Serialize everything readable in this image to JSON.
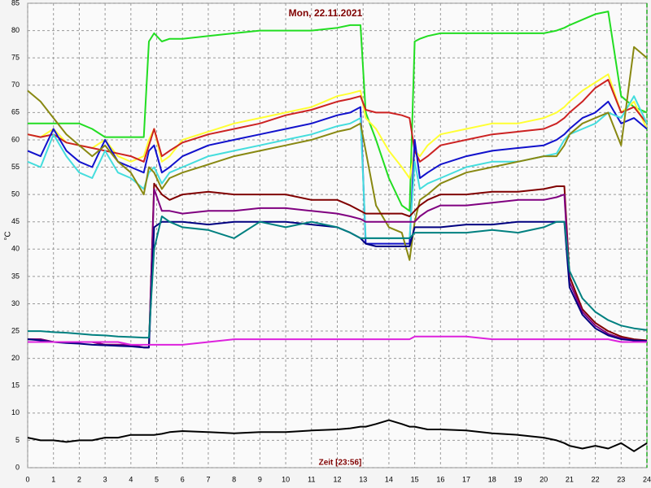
{
  "chart_data": {
    "type": "line",
    "title": "Mon, 22.11.2021",
    "ylabel": "°C",
    "xlabel": "Zeit [23:56]",
    "x": [
      0,
      0.5,
      1,
      1.5,
      2,
      2.5,
      3,
      3.5,
      4,
      4.5,
      4.7,
      4.9,
      5.2,
      5.5,
      6,
      7,
      8,
      9,
      10,
      11,
      12,
      12.5,
      12.9,
      13.1,
      13.5,
      14,
      14.5,
      14.8,
      15,
      15.2,
      15.5,
      16,
      17,
      18,
      19,
      20,
      20.5,
      20.8,
      21,
      21.5,
      22,
      22.5,
      23,
      23.5,
      24
    ],
    "series": [
      {
        "color": "#22dd22",
        "values": [
          63,
          63,
          63,
          63,
          63,
          62,
          60.5,
          60.5,
          60.5,
          60.5,
          78,
          79.5,
          78,
          78.5,
          78.5,
          79,
          79.5,
          80,
          80,
          80,
          80.5,
          81,
          81,
          65,
          60,
          53,
          48,
          47,
          78,
          78.5,
          79,
          79.5,
          79.5,
          79.5,
          79.5,
          79.5,
          80,
          80.5,
          81,
          82,
          83,
          83.5,
          68,
          66,
          65
        ]
      },
      {
        "color": "#ffff33",
        "values": [
          61,
          60.5,
          62,
          59.5,
          59,
          58.5,
          60,
          57,
          56,
          57,
          60,
          62,
          56,
          57,
          60,
          61.5,
          63,
          64,
          65,
          66,
          68,
          68.5,
          69,
          64,
          62,
          58,
          55,
          53,
          58,
          57,
          59,
          61,
          62,
          63,
          63,
          64,
          65,
          66,
          67,
          69,
          70.5,
          72,
          65,
          67,
          62
        ]
      },
      {
        "color": "#cc2222",
        "values": [
          61,
          60.5,
          61,
          59.5,
          59,
          58.5,
          58,
          57.5,
          57,
          56,
          59,
          62,
          57,
          58,
          59.5,
          61,
          62,
          63,
          64.5,
          65.5,
          67,
          67.5,
          68,
          65.5,
          65,
          65,
          64.5,
          64,
          58,
          56,
          57,
          59,
          60,
          61,
          61.5,
          62,
          63,
          64,
          65,
          67,
          69.5,
          71,
          65,
          66,
          63
        ]
      },
      {
        "color": "#1111cc",
        "values": [
          58,
          57,
          62,
          58,
          56,
          55,
          60,
          56,
          55,
          54,
          58,
          59,
          54,
          55,
          57,
          59,
          60,
          61,
          62,
          63,
          64.5,
          65,
          66,
          41,
          41,
          41,
          41,
          41,
          60,
          53,
          54,
          55.5,
          57,
          58,
          58.5,
          59,
          60,
          61,
          62,
          64,
          65,
          67,
          63,
          64,
          62
        ]
      },
      {
        "color": "#44dddd",
        "values": [
          56,
          55,
          61,
          57,
          54,
          53,
          58,
          54,
          53,
          51,
          54,
          55,
          52,
          54,
          55,
          57,
          58,
          59,
          60,
          61,
          62.5,
          63,
          64,
          42,
          42,
          42,
          42,
          42,
          56,
          51,
          52,
          53,
          55,
          56,
          56,
          57,
          57.5,
          60,
          61,
          62,
          63,
          65,
          64,
          68,
          63
        ]
      },
      {
        "color": "#888811",
        "values": [
          69,
          67,
          64,
          61,
          59,
          57,
          59,
          56,
          54,
          50,
          55,
          54,
          51,
          53,
          54,
          55.5,
          57,
          58,
          59,
          60,
          61.5,
          62,
          63,
          58,
          48,
          44,
          43,
          38,
          45,
          49,
          50,
          52,
          54,
          55,
          56,
          57,
          57,
          59,
          61,
          63,
          64,
          65,
          59,
          77,
          75
        ]
      },
      {
        "color": "#800000",
        "values": [
          23.5,
          23.5,
          23,
          23,
          23,
          23,
          22.5,
          22.5,
          22.5,
          22,
          22,
          52,
          50,
          49,
          50,
          50.5,
          50,
          50,
          50,
          49,
          49,
          48,
          47,
          46.5,
          46.5,
          46.5,
          46.5,
          46,
          47,
          48,
          49,
          50,
          50,
          50.5,
          50.5,
          51,
          51.5,
          51.5,
          35,
          29,
          26.5,
          25,
          24,
          23.5,
          23.3
        ]
      },
      {
        "color": "#800080",
        "values": [
          23.5,
          23.5,
          23,
          23,
          23,
          23,
          22.5,
          22.5,
          22.5,
          22,
          22,
          51,
          47,
          47,
          46.5,
          47,
          47,
          47.5,
          47.5,
          47,
          46.5,
          46,
          45.5,
          45,
          45,
          45,
          45,
          45,
          45,
          46,
          47,
          48,
          48,
          48.5,
          49,
          49,
          49.5,
          50,
          34,
          28.5,
          26,
          24.5,
          23.7,
          23.3,
          23.2
        ]
      },
      {
        "color": "#000080",
        "values": [
          23.5,
          23.3,
          23,
          22.8,
          22.7,
          22.5,
          22.4,
          22.3,
          22.2,
          22,
          22,
          44,
          45,
          45,
          45,
          44.5,
          45,
          45,
          45,
          44.5,
          44,
          43,
          42,
          41,
          40.5,
          40.5,
          40.5,
          40.5,
          44,
          44,
          44,
          44,
          44.5,
          44.5,
          45,
          45,
          45,
          45,
          33,
          28,
          25.5,
          24.2,
          23.5,
          23.3,
          23.2
        ]
      },
      {
        "color": "#008080",
        "values": [
          25,
          25,
          24.8,
          24.7,
          24.5,
          24.3,
          24.2,
          24,
          23.9,
          23.8,
          23.8,
          40,
          46,
          45,
          44,
          43.5,
          42,
          45,
          44,
          45,
          44,
          43,
          42,
          42,
          42,
          42,
          42,
          42,
          43,
          43,
          43,
          43,
          43,
          43.5,
          43,
          44,
          45,
          45,
          36,
          31,
          28.5,
          27,
          26,
          25.5,
          25.2
        ]
      },
      {
        "color": "#dd22dd",
        "values": [
          23,
          23,
          23,
          23,
          23,
          23,
          23,
          23,
          22.5,
          22.5,
          22.5,
          22.5,
          22.5,
          22.5,
          22.5,
          23,
          23.5,
          23.5,
          23.5,
          23.5,
          23.5,
          23.5,
          23.5,
          23.5,
          23.5,
          23.5,
          23.5,
          23.5,
          24,
          24,
          24,
          24,
          24,
          23.5,
          23.5,
          23.5,
          23.5,
          23.5,
          23.5,
          23.5,
          23.5,
          23.5,
          23,
          23,
          23
        ]
      },
      {
        "color": "#000000",
        "values": [
          5.5,
          5,
          5,
          4.7,
          5,
          5,
          5.5,
          5.5,
          6,
          6,
          6,
          6,
          6.2,
          6.5,
          6.7,
          6.5,
          6.3,
          6.5,
          6.5,
          6.8,
          7,
          7.2,
          7.5,
          7.5,
          8,
          8.7,
          8,
          7.5,
          7.5,
          7.3,
          7,
          7,
          6.8,
          6.3,
          6,
          5.5,
          5,
          4.5,
          4,
          3.5,
          4,
          3.5,
          4.5,
          3,
          4.5
        ]
      }
    ],
    "xlim": [
      0,
      24
    ],
    "ylim": [
      0,
      85
    ],
    "xticks": [
      0,
      1,
      2,
      3,
      4,
      5,
      6,
      7,
      8,
      9,
      10,
      11,
      12,
      13,
      14,
      15,
      16,
      17,
      18,
      19,
      20,
      21,
      22,
      23,
      24
    ],
    "yticks": [
      0,
      5,
      10,
      15,
      20,
      25,
      30,
      35,
      40,
      45,
      50,
      55,
      60,
      65,
      70,
      75,
      80,
      85
    ],
    "grid": true
  }
}
